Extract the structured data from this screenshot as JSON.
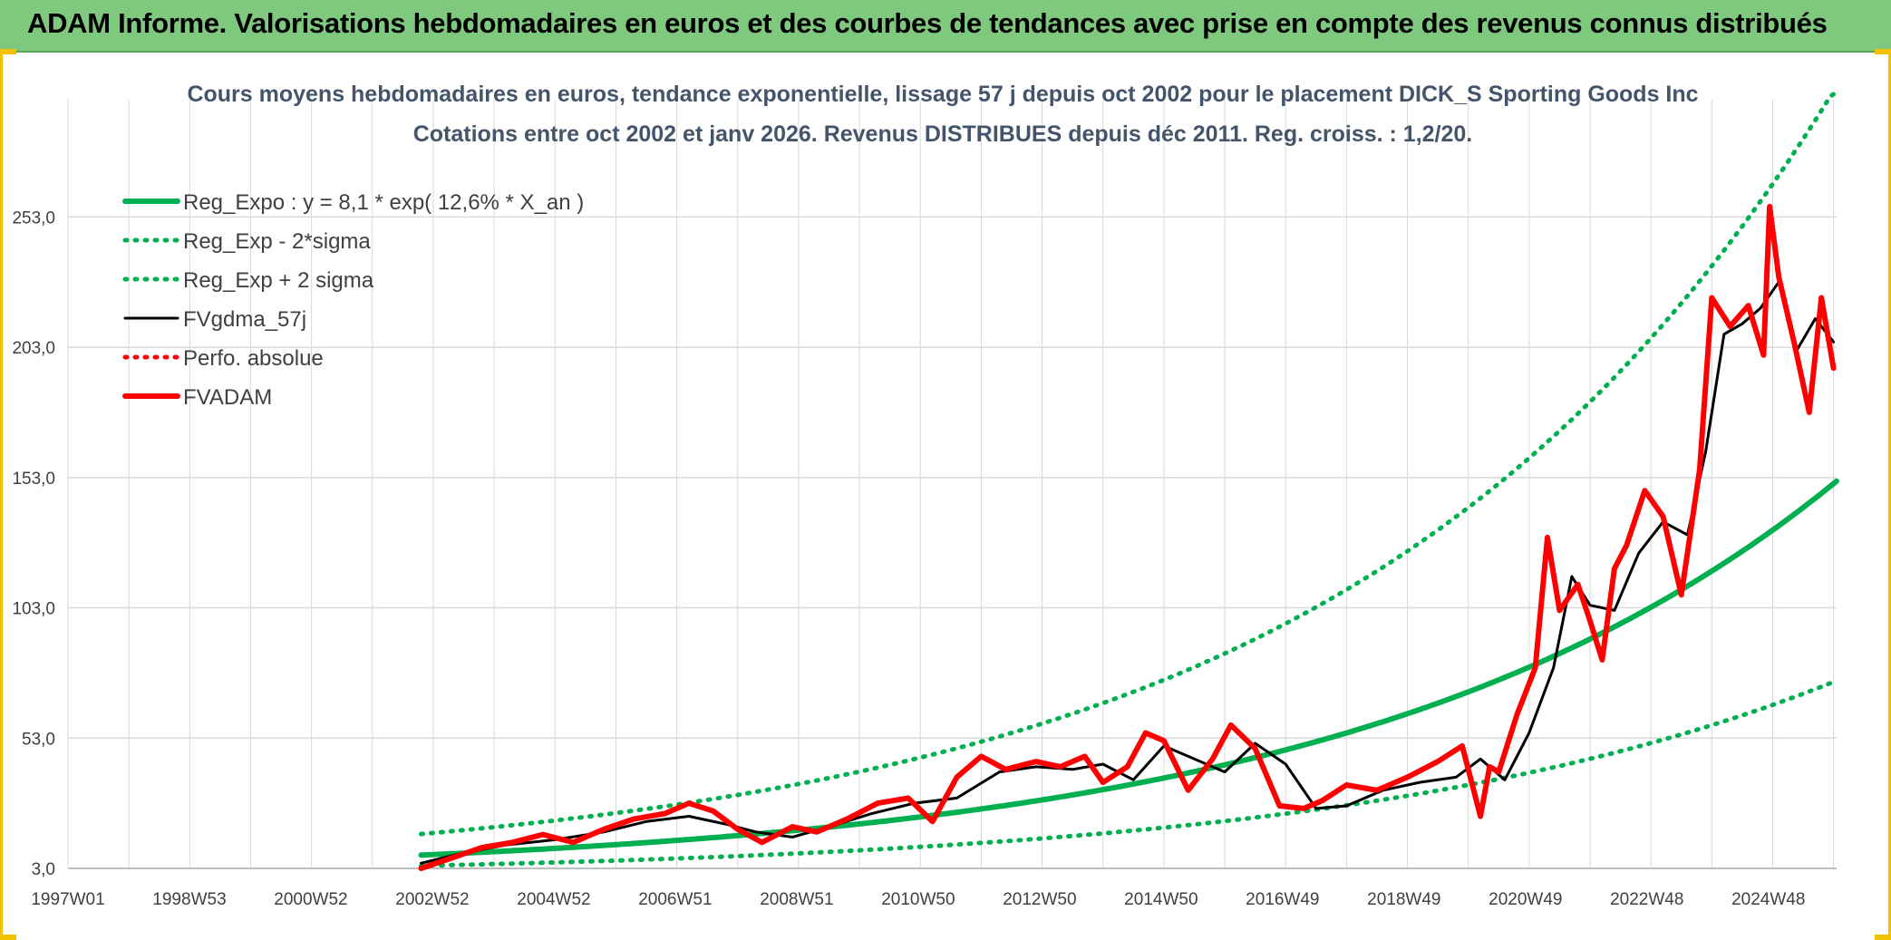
{
  "banner": {
    "title": "ADAM Informe. Valorisations hebdomadaires en euros et des courbes de tendances avec prise en compte des revenus connus distribués"
  },
  "colors": {
    "banner_bg": "#7fc97f",
    "reg_expo": "#00b050",
    "reg_band": "#00b050",
    "fvgdma": "#000000",
    "perfo": "#ff0000",
    "fvadam": "#ff0000",
    "grid": "#d9d9d9"
  },
  "chart_data": {
    "type": "line",
    "title": "Cours moyens hebdomadaires en euros, tendance exponentielle, lissage 57 j depuis oct 2002 pour le placement DICK_S Sporting Goods Inc",
    "subtitle": "Cotations entre oct 2002 et janv 2026. Revenus DISTRIBUES depuis déc 2011. Reg. croiss. : 1,2/20.",
    "x_ticks": [
      "1997W01",
      "1998W53",
      "2000W52",
      "2002W52",
      "2004W52",
      "2006W51",
      "2008W51",
      "2010W50",
      "2012W50",
      "2014W50",
      "2016W49",
      "2018W49",
      "2020W49",
      "2022W48",
      "2024W48"
    ],
    "x_range": [
      1997.0,
      2026.05
    ],
    "y_ticks": [
      "3,0",
      "53,0",
      "103,0",
      "153,0",
      "203,0",
      "253,0"
    ],
    "ylim": [
      3,
      298
    ],
    "regression": {
      "formula_label": "Reg_Expo : y = 8,1 * exp( 12,6% *  X_an )",
      "a": 8.1,
      "b": 0.126,
      "x0": 2002.8
    },
    "series": [
      {
        "name": "Reg_Expo : y = 8,1 * exp( 12,6% *  X_an )",
        "style": "solid-thick",
        "color": "#00b050",
        "x": [
          2002.8,
          2004.8,
          2006.8,
          2008.8,
          2010.8,
          2012.8,
          2014.8,
          2016.8,
          2018.8,
          2020.8,
          2022.8,
          2024.8,
          2026.05
        ],
        "values": [
          8.1,
          10.4,
          13.4,
          17.4,
          22.4,
          28.9,
          37.2,
          48.0,
          61.9,
          79.7,
          102.7,
          132.3,
          151.0
        ]
      },
      {
        "name": "Reg_Exp - 2*sigma",
        "style": "dotted",
        "color": "#00b050",
        "x": [
          2002.8,
          2004.8,
          2006.8,
          2008.8,
          2010.8,
          2012.8,
          2014.8,
          2016.8,
          2018.8,
          2020.8,
          2022.8,
          2024.8,
          2026.05
        ],
        "values": [
          4.0,
          5.2,
          6.7,
          8.7,
          11.2,
          14.5,
          18.6,
          24.0,
          31.0,
          39.9,
          51.4,
          66.2,
          75.5
        ]
      },
      {
        "name": "Reg_Exp + 2 sigma",
        "style": "dotted",
        "color": "#00b050",
        "x": [
          2002.8,
          2004.8,
          2006.8,
          2008.8,
          2010.8,
          2012.8,
          2014.8,
          2016.8,
          2018.8,
          2020.8,
          2022.8,
          2024.8,
          2026.05
        ],
        "values": [
          16.2,
          20.8,
          26.8,
          34.8,
          44.8,
          57.8,
          74.4,
          96.0,
          123.8,
          159.4,
          205.4,
          264.6,
          302.0
        ]
      },
      {
        "name": "FVgdma_57j",
        "style": "solid",
        "color": "#000000",
        "x": [
          2002.8,
          2003.5,
          2004.2,
          2005.0,
          2005.8,
          2006.5,
          2007.2,
          2007.8,
          2008.3,
          2008.9,
          2009.5,
          2010.2,
          2010.9,
          2011.6,
          2012.3,
          2012.9,
          2013.5,
          2014.0,
          2014.5,
          2015.0,
          2015.5,
          2016.0,
          2016.5,
          2017.0,
          2017.5,
          2018.0,
          2018.6,
          2019.2,
          2019.8,
          2020.2,
          2020.6,
          2021.0,
          2021.4,
          2021.7,
          2022.0,
          2022.4,
          2022.8,
          2023.2,
          2023.6,
          2023.9,
          2024.2,
          2024.5,
          2024.8,
          2025.1,
          2025.4,
          2025.7,
          2026.0
        ],
        "values": [
          5,
          9,
          12,
          14,
          17,
          21,
          23,
          20,
          17,
          15,
          19,
          24,
          28,
          30,
          40,
          42,
          41,
          43,
          37,
          50,
          45,
          40,
          51,
          43,
          26,
          27,
          33,
          36,
          38,
          45,
          37,
          55,
          80,
          115,
          104,
          102,
          124,
          136,
          131,
          163,
          208,
          212,
          218,
          228,
          202,
          214,
          205
        ]
      },
      {
        "name": "Perfo. absolue",
        "style": "dotted",
        "color": "#ff0000",
        "x": [],
        "values": []
      },
      {
        "name": "FVADAM",
        "style": "solid-thick",
        "color": "#ff0000",
        "x": [
          2002.8,
          2003.3,
          2003.8,
          2004.3,
          2004.8,
          2005.3,
          2005.8,
          2006.3,
          2006.8,
          2007.2,
          2007.6,
          2008.0,
          2008.4,
          2008.9,
          2009.3,
          2009.8,
          2010.3,
          2010.8,
          2011.2,
          2011.6,
          2012.0,
          2012.4,
          2012.9,
          2013.3,
          2013.7,
          2014.0,
          2014.4,
          2014.7,
          2015.0,
          2015.4,
          2015.8,
          2016.1,
          2016.5,
          2016.9,
          2017.3,
          2017.6,
          2018.0,
          2018.5,
          2019.0,
          2019.5,
          2019.9,
          2020.2,
          2020.35,
          2020.5,
          2020.8,
          2021.1,
          2021.3,
          2021.5,
          2021.8,
          2022.0,
          2022.2,
          2022.4,
          2022.6,
          2022.9,
          2023.2,
          2023.5,
          2023.8,
          2024.0,
          2024.3,
          2024.6,
          2024.85,
          2024.95,
          2025.1,
          2025.35,
          2025.6,
          2025.8,
          2026.0
        ],
        "values": [
          3,
          7,
          11,
          13,
          16,
          13,
          18,
          22,
          24,
          28,
          25,
          18,
          13,
          19,
          17,
          22,
          28,
          30,
          21,
          38,
          46,
          41,
          44,
          42,
          46,
          36,
          42,
          55,
          52,
          33,
          45,
          58,
          49,
          27,
          26,
          29,
          35,
          33,
          38,
          44,
          50,
          23,
          42,
          40,
          62,
          80,
          130,
          102,
          112,
          98,
          83,
          118,
          127,
          148,
          138,
          108,
          156,
          222,
          211,
          219,
          200,
          257,
          230,
          205,
          178,
          222,
          195
        ]
      }
    ]
  }
}
